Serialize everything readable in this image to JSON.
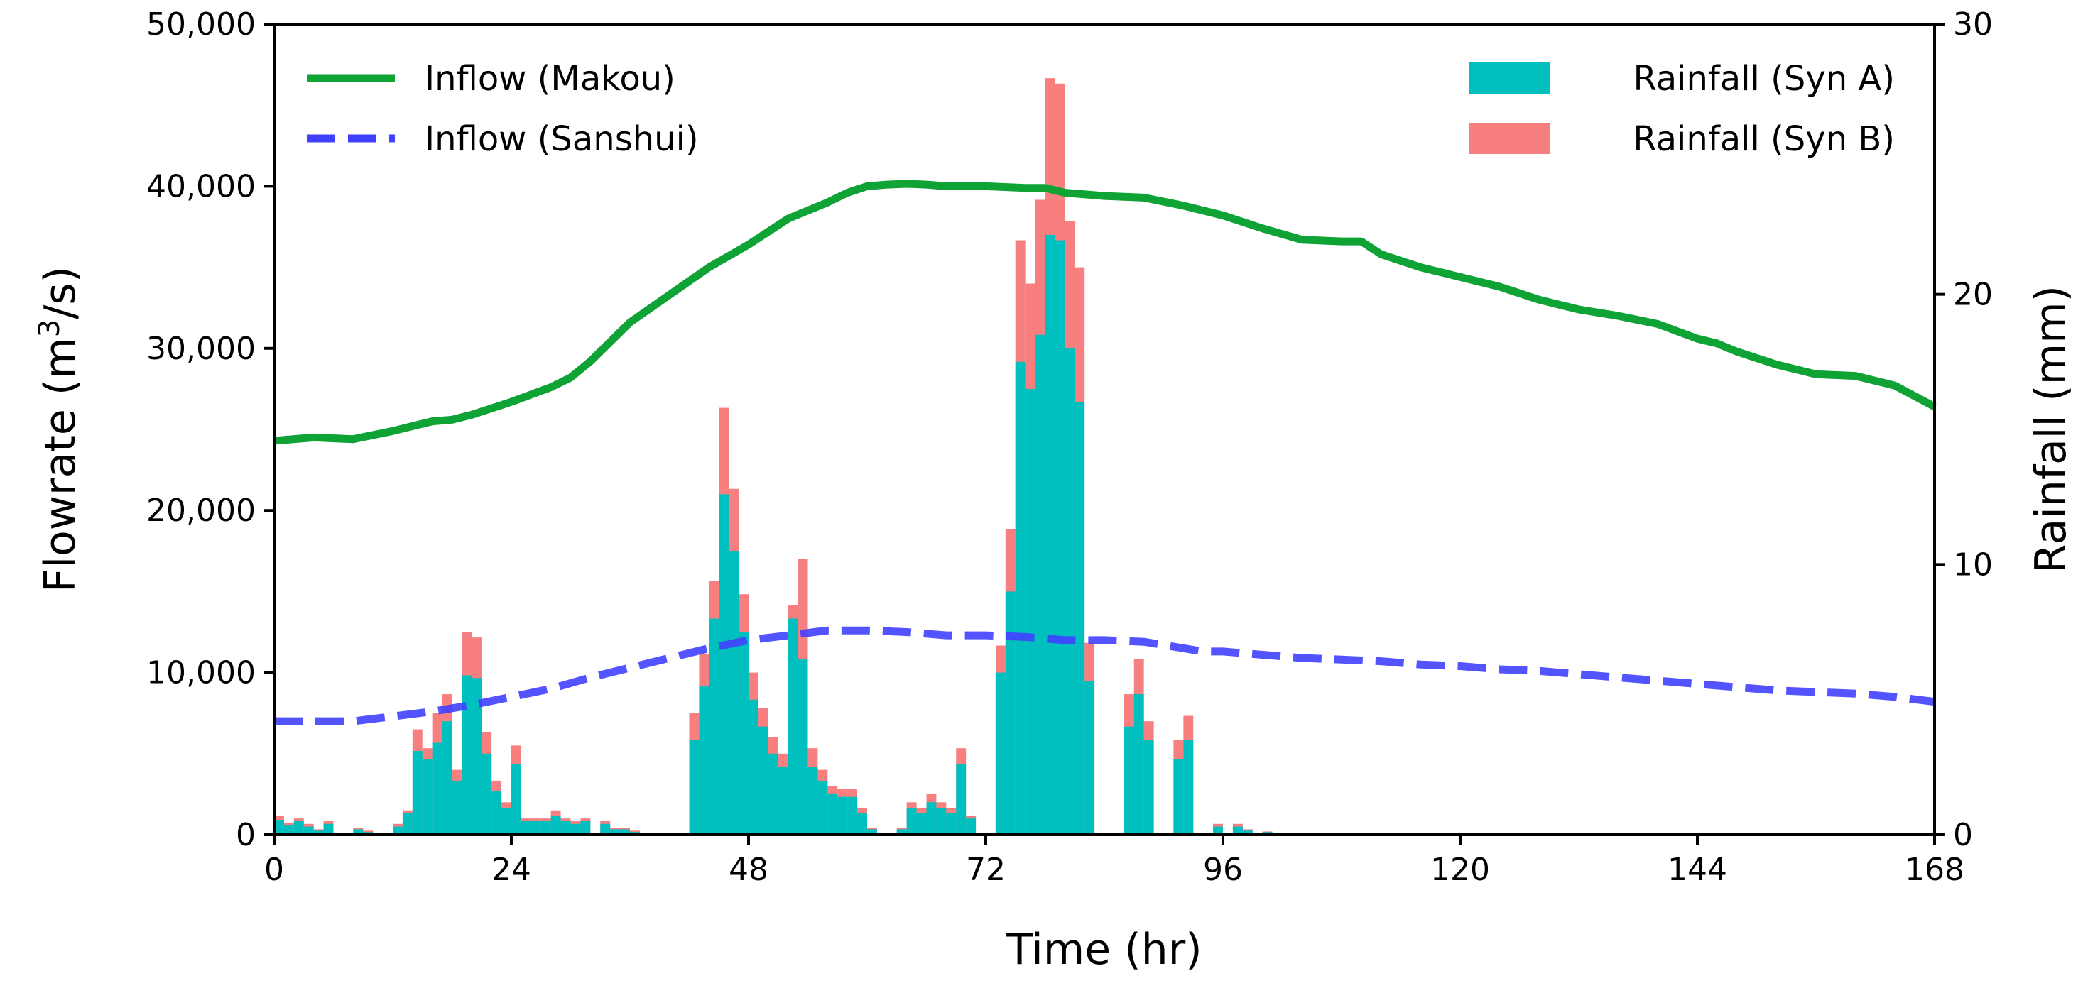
{
  "chart_data": {
    "type": "line+bar",
    "title": "",
    "xlabel": "Time (hr)",
    "ylabel_left": "Flowrate (m³/s)",
    "ylabel_left_parts": {
      "prefix": "Flowrate (m",
      "sup": "3",
      "suffix": "/s)"
    },
    "ylabel_right": "Rainfall (mm)",
    "xlim": [
      0,
      168
    ],
    "ylim_left": [
      0,
      50000
    ],
    "ylim_right": [
      0,
      30
    ],
    "x_ticks": [
      0,
      24,
      48,
      72,
      96,
      120,
      144,
      168
    ],
    "x_tick_labels": [
      "0",
      "24",
      "48",
      "72",
      "96",
      "120",
      "144",
      "168"
    ],
    "y_left_ticks": [
      0,
      10000,
      20000,
      30000,
      40000,
      50000
    ],
    "y_left_tick_labels": [
      "0",
      "10,000",
      "20,000",
      "30,000",
      "40,000",
      "50,000"
    ],
    "y_right_ticks": [
      0,
      10,
      20,
      30
    ],
    "y_right_tick_labels": [
      "0",
      "10",
      "20",
      "30"
    ],
    "grid": false,
    "legend_left_position": "top-left",
    "legend_right_position": "top-right",
    "series": [
      {
        "name": "Inflow (Makou)",
        "kind": "line",
        "axis": "left",
        "color": "#0fa336",
        "style": "solid",
        "x": [
          0,
          4,
          8,
          12,
          14,
          16,
          18,
          20,
          24,
          28,
          30,
          32,
          36,
          40,
          44,
          48,
          52,
          56,
          58,
          60,
          62,
          64,
          66,
          68,
          72,
          76,
          78,
          80,
          84,
          88,
          92,
          96,
          100,
          104,
          108,
          110,
          112,
          116,
          120,
          124,
          128,
          132,
          136,
          140,
          144,
          146,
          148,
          152,
          156,
          160,
          164,
          168
        ],
        "values": [
          24300,
          24500,
          24400,
          24900,
          25200,
          25500,
          25600,
          25900,
          26700,
          27600,
          28200,
          29200,
          31600,
          33300,
          35000,
          36400,
          38000,
          39000,
          39600,
          40000,
          40100,
          40150,
          40100,
          40000,
          40000,
          39900,
          39900,
          39600,
          39400,
          39300,
          38800,
          38200,
          37400,
          36700,
          36600,
          36600,
          35800,
          35000,
          34400,
          33800,
          33000,
          32400,
          32000,
          31500,
          30600,
          30300,
          29800,
          29000,
          28400,
          28300,
          27700,
          26400
        ]
      },
      {
        "name": "Inflow (Sanshui)",
        "kind": "line",
        "axis": "left",
        "color": "#4040ff",
        "style": "dashed",
        "x": [
          0,
          4,
          8,
          12,
          16,
          20,
          24,
          28,
          32,
          36,
          40,
          44,
          48,
          52,
          56,
          60,
          64,
          66,
          68,
          72,
          76,
          80,
          84,
          88,
          92,
          94,
          96,
          100,
          104,
          108,
          112,
          116,
          120,
          124,
          128,
          132,
          136,
          140,
          144,
          148,
          152,
          156,
          160,
          164,
          168
        ],
        "values": [
          7000,
          7000,
          7000,
          7300,
          7600,
          8000,
          8500,
          9000,
          9700,
          10300,
          10900,
          11500,
          12000,
          12300,
          12600,
          12600,
          12500,
          12400,
          12300,
          12300,
          12200,
          12000,
          12000,
          11900,
          11500,
          11300,
          11300,
          11100,
          10900,
          10800,
          10700,
          10500,
          10400,
          10200,
          10100,
          9900,
          9700,
          9500,
          9300,
          9100,
          8900,
          8800,
          8700,
          8500,
          8200
        ]
      }
    ],
    "bar_series": [
      {
        "name": "Rainfall (Syn A)",
        "kind": "bar",
        "axis": "right",
        "color": "#00bfbf",
        "bar_width_hours": 1,
        "start_hour": 0,
        "values": [
          0.55,
          0.35,
          0.5,
          0.3,
          0.15,
          0.4,
          0,
          0,
          0.2,
          0.1,
          0,
          0,
          0.3,
          0.8,
          3.1,
          2.8,
          3.4,
          4.2,
          2.0,
          5.9,
          5.8,
          3.0,
          1.6,
          1.0,
          2.6,
          0.5,
          0.5,
          0.5,
          0.7,
          0.5,
          0.4,
          0.5,
          0,
          0.4,
          0.2,
          0.2,
          0.1,
          0,
          0,
          0,
          0,
          0,
          3.5,
          5.5,
          8.0,
          12.6,
          10.5,
          7.5,
          5.0,
          4.0,
          3.0,
          2.5,
          8.0,
          6.5,
          2.5,
          2.0,
          1.5,
          1.4,
          1.4,
          0.8,
          0.2,
          0,
          0,
          0.2,
          1.0,
          0.8,
          1.2,
          1.0,
          0.8,
          2.6,
          0.6,
          0,
          0,
          6.0,
          9.0,
          17.5,
          16.5,
          18.5,
          22.2,
          22.0,
          18.0,
          16.0,
          5.7,
          0,
          0,
          0,
          4.0,
          5.2,
          3.5,
          0,
          0,
          2.8,
          3.5,
          0,
          0,
          0.3,
          0.05,
          0.3,
          0.15,
          0.05,
          0.1,
          0.05
        ]
      },
      {
        "name": "Rainfall (Syn B)",
        "kind": "bar",
        "axis": "right",
        "color": "#f87f7f",
        "bar_width_hours": 1,
        "start_hour": 0,
        "values": [
          0.7,
          0.45,
          0.6,
          0.4,
          0.2,
          0.5,
          0,
          0,
          0.25,
          0.15,
          0,
          0,
          0.4,
          0.9,
          3.9,
          3.2,
          4.5,
          5.2,
          2.4,
          7.5,
          7.3,
          3.8,
          2.0,
          1.2,
          3.3,
          0.6,
          0.6,
          0.6,
          0.9,
          0.6,
          0.5,
          0.6,
          0,
          0.5,
          0.25,
          0.25,
          0.15,
          0,
          0,
          0,
          0,
          0,
          4.5,
          6.7,
          9.4,
          15.8,
          12.8,
          8.9,
          6.0,
          4.7,
          3.6,
          3.0,
          8.5,
          10.2,
          3.2,
          2.4,
          1.8,
          1.7,
          1.7,
          1.0,
          0.25,
          0,
          0,
          0.25,
          1.2,
          1.0,
          1.5,
          1.2,
          1.0,
          3.2,
          0.7,
          0,
          0,
          7.0,
          11.3,
          22.0,
          20.4,
          23.5,
          28.0,
          27.8,
          22.7,
          21.0,
          7.1,
          0,
          0,
          0,
          5.2,
          6.5,
          4.2,
          0,
          0,
          3.5,
          4.4,
          0,
          0,
          0.4,
          0.06,
          0.4,
          0.2,
          0.06,
          0.12,
          0.06
        ]
      }
    ]
  }
}
